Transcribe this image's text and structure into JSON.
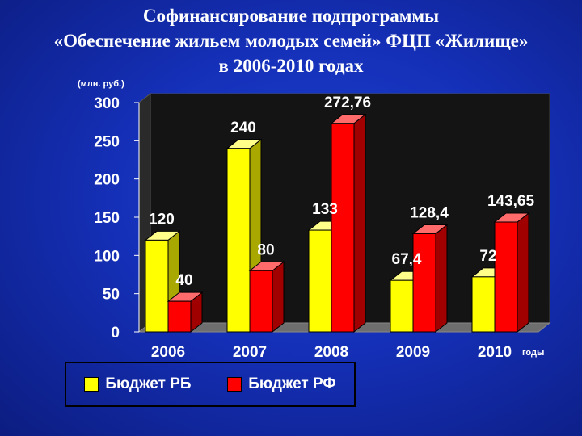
{
  "title_lines": [
    "Софинансирование подпрограммы",
    "«Обеспечение жильем молодых семей» ФЦП «Жилище»",
    "в 2006-2010 годах"
  ],
  "colors": {
    "background": "#1530b8",
    "series_rb": "#ffff00",
    "series_rf": "#ff0000",
    "text": "#ffffff",
    "plot_wall": "#1a1a1a"
  },
  "chart_data": {
    "type": "bar",
    "ylabel": "(млн. руб.)",
    "xlabel": "годы",
    "ylim": [
      0,
      300
    ],
    "yticks": [
      0,
      50,
      100,
      150,
      200,
      250,
      300
    ],
    "categories": [
      "2006",
      "2007",
      "2008",
      "2009",
      "2010"
    ],
    "series": [
      {
        "name": "Бюджет РБ",
        "values": [
          120,
          240,
          133,
          67.4,
          72
        ],
        "labels": [
          "120",
          "240",
          "133",
          "67,4",
          "72"
        ]
      },
      {
        "name": "Бюджет РФ",
        "values": [
          40,
          80,
          272.76,
          128.4,
          143.65
        ],
        "labels": [
          "40",
          "80",
          "272,76",
          "128,4",
          "143,65"
        ]
      }
    ],
    "grid": false,
    "legend_position": "bottom"
  }
}
